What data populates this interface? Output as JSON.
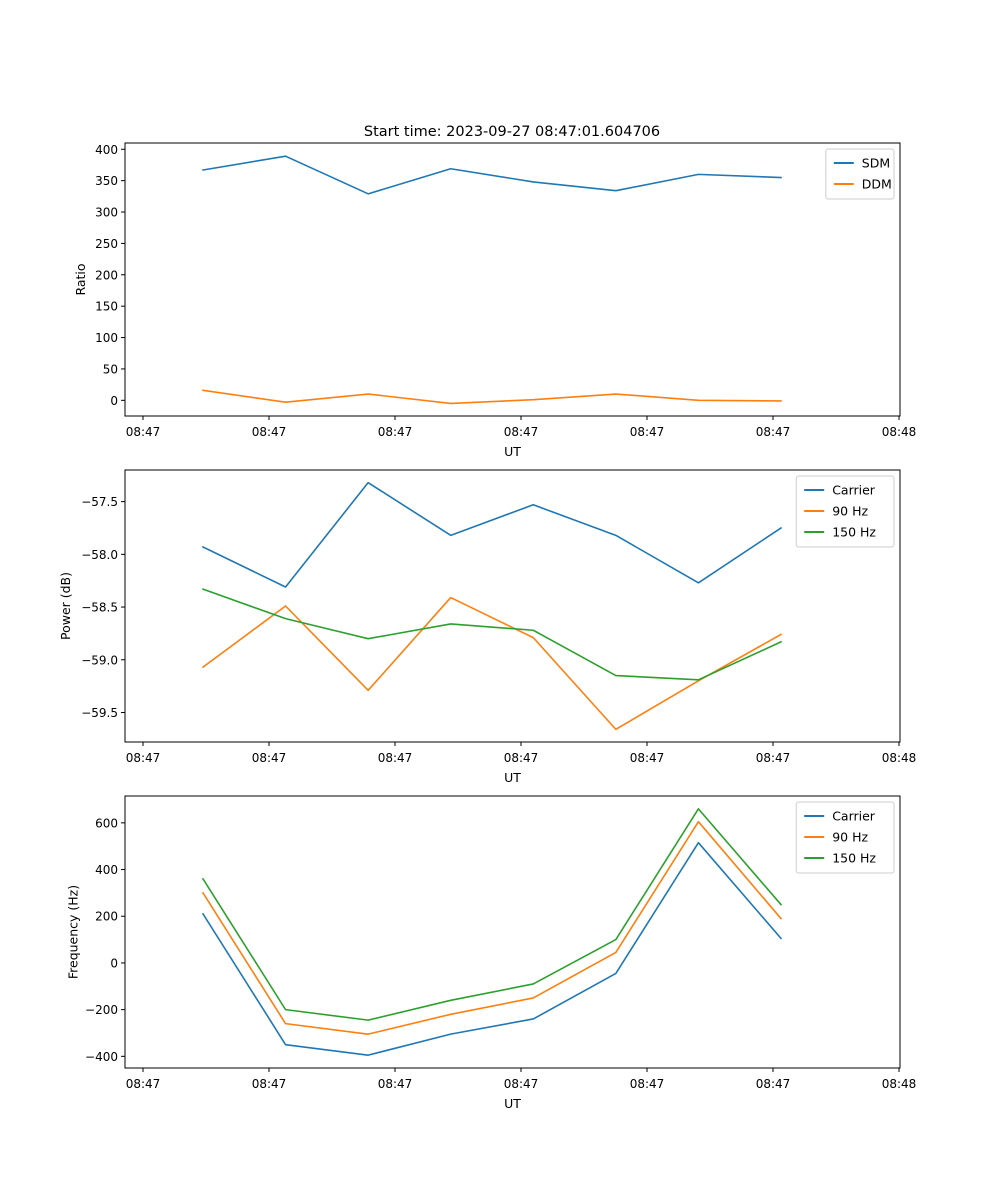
{
  "chart_data": [
    {
      "type": "line",
      "title": "Start time: 2023-09-27 08:47:01.604706",
      "xlabel": "UT",
      "ylabel": "Ratio",
      "x_tick_labels": [
        "08:47",
        "08:47",
        "08:47",
        "08:47",
        "08:47",
        "08:47",
        "08:48"
      ],
      "y_ticks": [
        0,
        50,
        100,
        150,
        200,
        250,
        300,
        350,
        400
      ],
      "y_tick_labels": [
        "0",
        "50",
        "100",
        "150",
        "200",
        "250",
        "300",
        "350",
        "400"
      ],
      "ylim": [
        -25,
        410
      ],
      "grid": false,
      "legend": "top-right",
      "x_index": [
        1,
        2,
        3,
        4,
        5,
        6,
        7,
        8
      ],
      "series": [
        {
          "name": "SDM",
          "color": "#1f77b4",
          "values": [
            367,
            389,
            329,
            369,
            348,
            334,
            360,
            355
          ]
        },
        {
          "name": "DDM",
          "color": "#ff7f0e",
          "values": [
            16,
            -3,
            10,
            -5,
            1,
            10,
            0,
            -1
          ]
        }
      ]
    },
    {
      "type": "line",
      "title": "",
      "xlabel": "UT",
      "ylabel": "Power (dB)",
      "x_tick_labels": [
        "08:47",
        "08:47",
        "08:47",
        "08:47",
        "08:47",
        "08:47",
        "08:48"
      ],
      "y_ticks": [
        -57.5,
        -58.0,
        -58.5,
        -59.0,
        -59.5
      ],
      "y_tick_labels": [
        "−57.5",
        "−58.0",
        "−58.5",
        "−59.0",
        "−59.5"
      ],
      "ylim": [
        -59.78,
        -57.2
      ],
      "grid": false,
      "legend": "top-right",
      "x_index": [
        1,
        2,
        3,
        4,
        5,
        6,
        7,
        8
      ],
      "series": [
        {
          "name": "Carrier",
          "color": "#1f77b4",
          "values": [
            -57.93,
            -58.31,
            -57.32,
            -57.82,
            -57.53,
            -57.82,
            -58.27,
            -57.75
          ]
        },
        {
          "name": "90 Hz",
          "color": "#ff7f0e",
          "values": [
            -59.07,
            -58.49,
            -59.29,
            -58.41,
            -58.79,
            -59.66,
            -59.2,
            -58.76
          ]
        },
        {
          "name": "150 Hz",
          "color": "#2ca02c",
          "values": [
            -58.33,
            -58.61,
            -58.8,
            -58.66,
            -58.72,
            -59.15,
            -59.19,
            -58.83
          ]
        }
      ]
    },
    {
      "type": "line",
      "title": "",
      "xlabel": "UT",
      "ylabel": "Frequency (Hz)",
      "x_tick_labels": [
        "08:47",
        "08:47",
        "08:47",
        "08:47",
        "08:47",
        "08:47",
        "08:48"
      ],
      "y_ticks": [
        600,
        400,
        200,
        0,
        -200,
        -400
      ],
      "y_tick_labels": [
        "600",
        "400",
        "200",
        "0",
        "−200",
        "−400"
      ],
      "ylim": [
        -450,
        715
      ],
      "grid": false,
      "legend": "top-right",
      "x_index": [
        1,
        2,
        3,
        4,
        5,
        6,
        7,
        8
      ],
      "series": [
        {
          "name": "Carrier",
          "color": "#1f77b4",
          "values": [
            210,
            -350,
            -395,
            -305,
            -240,
            -45,
            515,
            105
          ]
        },
        {
          "name": "90 Hz",
          "color": "#ff7f0e",
          "values": [
            300,
            -260,
            -305,
            -220,
            -150,
            45,
            605,
            190
          ]
        },
        {
          "name": "150 Hz",
          "color": "#2ca02c",
          "values": [
            360,
            -200,
            -245,
            -160,
            -90,
            100,
            660,
            250
          ]
        }
      ]
    }
  ]
}
